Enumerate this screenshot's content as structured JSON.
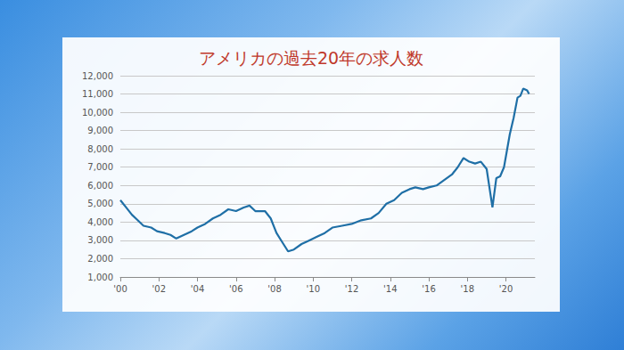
{
  "chart_data": {
    "type": "line",
    "title": "アメリカの過去20年の求人数",
    "color": "#1f6fa6",
    "grid": true,
    "xlim": [
      2000,
      2021.5
    ],
    "xticks": [
      {
        "value": 2000,
        "label": "'00"
      },
      {
        "value": 2002,
        "label": "'02"
      },
      {
        "value": 2004,
        "label": "'04"
      },
      {
        "value": 2006,
        "label": "'06"
      },
      {
        "value": 2008,
        "label": "'08"
      },
      {
        "value": 2010,
        "label": "'10"
      },
      {
        "value": 2012,
        "label": "'12"
      },
      {
        "value": 2014,
        "label": "'14"
      },
      {
        "value": 2016,
        "label": "'16"
      },
      {
        "value": 2018,
        "label": "'18"
      },
      {
        "value": 2020,
        "label": "'20"
      }
    ],
    "ylim": [
      1000,
      12000
    ],
    "yticks": [
      {
        "value": 1000,
        "label": "1,000"
      },
      {
        "value": 2000,
        "label": "2,000"
      },
      {
        "value": 3000,
        "label": "3,000"
      },
      {
        "value": 4000,
        "label": "4,000"
      },
      {
        "value": 5000,
        "label": "5,000"
      },
      {
        "value": 6000,
        "label": "6,000"
      },
      {
        "value": 7000,
        "label": "7,000"
      },
      {
        "value": 8000,
        "label": "8,000"
      },
      {
        "value": 9000,
        "label": "9,000"
      },
      {
        "value": 10000,
        "label": "10,000"
      },
      {
        "value": 11000,
        "label": "11,000"
      },
      {
        "value": 12000,
        "label": "12,000"
      }
    ],
    "x": [
      2000.0,
      2000.3,
      2000.6,
      2000.9,
      2001.2,
      2001.6,
      2001.9,
      2002.3,
      2002.6,
      2002.9,
      2003.3,
      2003.7,
      2004.0,
      2004.4,
      2004.8,
      2005.2,
      2005.6,
      2006.0,
      2006.4,
      2006.7,
      2007.0,
      2007.5,
      2007.8,
      2008.1,
      2008.4,
      2008.7,
      2009.0,
      2009.4,
      2009.8,
      2010.2,
      2010.6,
      2011.0,
      2011.5,
      2012.0,
      2012.5,
      2013.0,
      2013.4,
      2013.8,
      2014.2,
      2014.6,
      2015.0,
      2015.3,
      2015.7,
      2016.0,
      2016.4,
      2016.8,
      2017.2,
      2017.5,
      2017.8,
      2018.1,
      2018.4,
      2018.7,
      2019.0,
      2019.3,
      2019.5,
      2019.7,
      2019.9,
      2020.2,
      2020.4,
      2020.6,
      2020.75,
      2020.9,
      2021.1,
      2021.2
    ],
    "values": [
      5200,
      4800,
      4400,
      4100,
      3800,
      3700,
      3500,
      3400,
      3300,
      3100,
      3300,
      3500,
      3700,
      3900,
      4200,
      4400,
      4700,
      4600,
      4800,
      4900,
      4600,
      4600,
      4200,
      3400,
      2900,
      2400,
      2500,
      2800,
      3000,
      3200,
      3400,
      3700,
      3800,
      3900,
      4100,
      4200,
      4500,
      5000,
      5200,
      5600,
      5800,
      5900,
      5800,
      5900,
      6000,
      6300,
      6600,
      7000,
      7500,
      7300,
      7200,
      7300,
      6900,
      4800,
      6400,
      6500,
      7000,
      8800,
      9700,
      10800,
      10900,
      11300,
      11200,
      11000
    ]
  }
}
